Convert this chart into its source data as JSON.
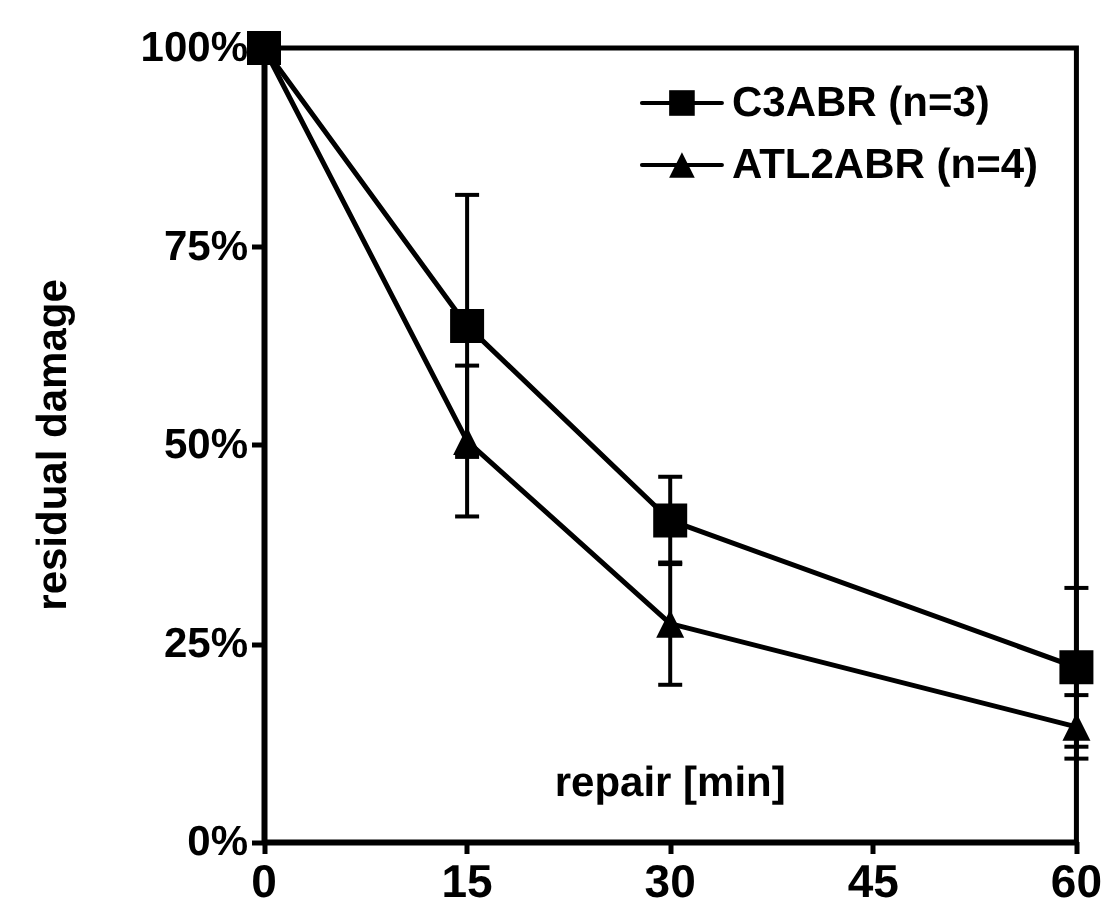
{
  "chart_data": {
    "type": "line",
    "xlabel": "repair [min]",
    "ylabel": "residual damage",
    "x": [
      0,
      15,
      30,
      60
    ],
    "series": [
      {
        "name": "C3ABR (n=3)",
        "color": "#000000",
        "marker": "square",
        "values": [
          100,
          65,
          40.5,
          22
        ],
        "errors": [
          null,
          16.5,
          5.5,
          10
        ]
      },
      {
        "name": "ATL2ABR (n=4)",
        "color": "#000000",
        "marker": "triangle",
        "values": [
          100,
          50.5,
          27.5,
          14.5
        ],
        "errors": [
          null,
          9.5,
          7.7,
          4
        ]
      }
    ],
    "xlim": [
      0,
      60
    ],
    "xticks": [
      0,
      15,
      30,
      45,
      60
    ],
    "ylim": [
      0,
      100
    ],
    "yticks": [
      {
        "value": 0,
        "label": "0%"
      },
      {
        "value": 25,
        "label": "25%"
      },
      {
        "value": 50,
        "label": "50%"
      },
      {
        "value": 75,
        "label": "75%"
      },
      {
        "value": 100,
        "label": "100%"
      }
    ],
    "grid": false,
    "legend": "top right",
    "line_style": "solid"
  }
}
